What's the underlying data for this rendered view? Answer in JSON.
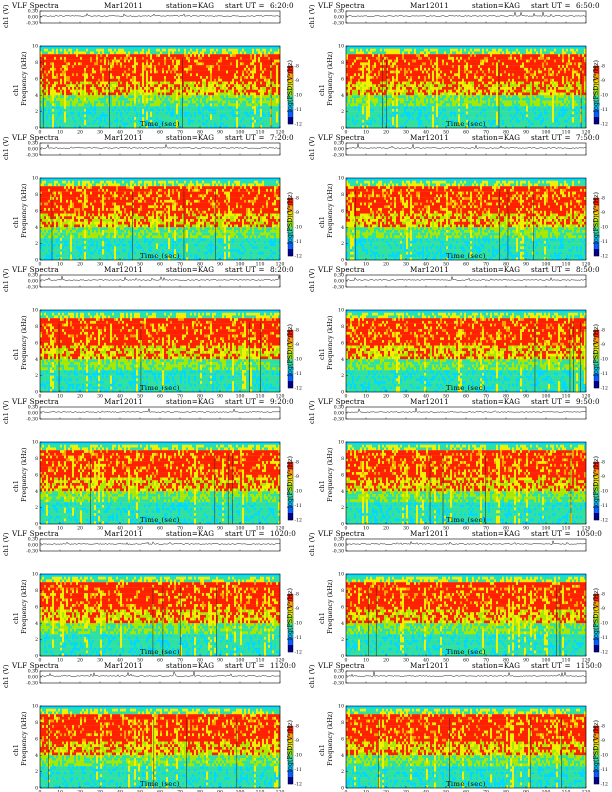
{
  "page": {
    "title_left": "VLF Spectra",
    "title_date": "Mar12011",
    "station": "station=KAG",
    "start_prefix": "start  UT =",
    "top_ylabel": "ch1 (V)",
    "spec_ylabel": "Frequency  (kHz)",
    "spec_ylabel_ch": "ch1",
    "colorbar_label": "log(PSD)(V²/Hz)",
    "xlabel": "Time  (sec)"
  },
  "panels": [
    {
      "start_time": "6:20:0"
    },
    {
      "start_time": "6:50:0"
    },
    {
      "start_time": "7:20:0"
    },
    {
      "start_time": "7:50:0"
    },
    {
      "start_time": "8:20:0"
    },
    {
      "start_time": "8:50:0"
    },
    {
      "start_time": "9:20:0"
    },
    {
      "start_time": "9:50:0"
    },
    {
      "start_time": "1020:0"
    },
    {
      "start_time": "1050:0"
    },
    {
      "start_time": "1120:0"
    },
    {
      "start_time": "1150:0"
    }
  ],
  "chart_data": {
    "type": "heatmap",
    "grid": "2 columns x 6 rows",
    "x_ticks": [
      0,
      10,
      20,
      30,
      40,
      50,
      60,
      70,
      80,
      90,
      100,
      110,
      120
    ],
    "xlim": [
      0,
      120
    ],
    "freq_ticks": [
      0,
      2,
      4,
      6,
      8,
      10
    ],
    "freq_lim": [
      0,
      10
    ],
    "waveform_ticks": [
      "0.30",
      "0.00",
      "-0.30"
    ],
    "waveform_lim": [
      -0.3,
      0.3
    ],
    "colorbar_ticks": [
      "-8",
      "-9",
      "-10",
      "-11",
      "-12"
    ],
    "colormap": [
      "#00008b",
      "#0060ff",
      "#00d8ff",
      "#30e0a0",
      "#a8e800",
      "#f0f000",
      "#ffa000",
      "#ff2000"
    ]
  }
}
